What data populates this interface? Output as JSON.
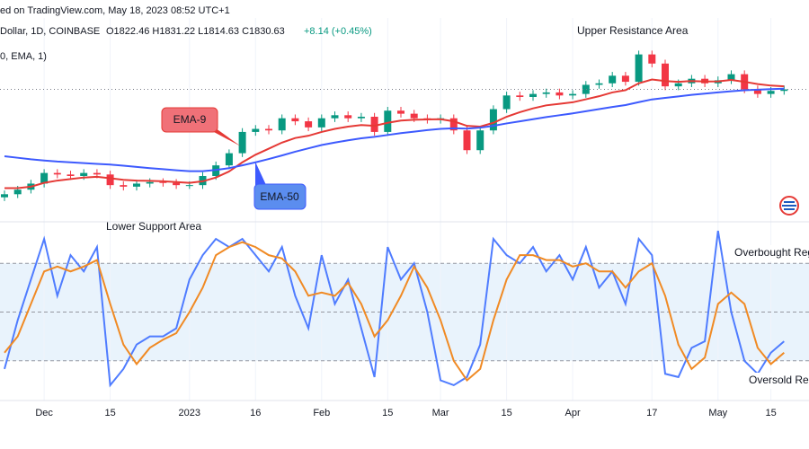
{
  "header": {
    "source": "ed on TradingView.com, May 18, 2023 08:52 UTC+1",
    "symbol": "Dollar, 1D, COINBASE",
    "ohlc": "O1822.46 H1831.22 L1814.63 C1830.63",
    "change": "+8.14 (+0.45%)",
    "indicator": "0, EMA, 1)"
  },
  "chart_data": [
    {
      "type": "candlestick",
      "up_color": "#089981",
      "down_color": "#f23645",
      "ylim": [
        1000,
        2300
      ],
      "annotations": [
        "Upper Resistance Area",
        "Lower Support Area"
      ],
      "open": [
        1120,
        1140,
        1170,
        1210,
        1280,
        1270,
        1260,
        1280,
        1270,
        1200,
        1190,
        1210,
        1220,
        1215,
        1200,
        1200,
        1260,
        1330,
        1410,
        1550,
        1570,
        1560,
        1640,
        1620,
        1580,
        1640,
        1660,
        1640,
        1650,
        1550,
        1690,
        1670,
        1640,
        1630,
        1640,
        1560,
        1430,
        1560,
        1700,
        1790,
        1780,
        1800,
        1810,
        1790,
        1800,
        1860,
        1870,
        1920,
        1880,
        2060,
        2000,
        1850,
        1870,
        1900,
        1870,
        1890,
        1930,
        1830,
        1800,
        1820
      ],
      "high": [
        1165,
        1195,
        1235,
        1305,
        1305,
        1295,
        1305,
        1305,
        1295,
        1225,
        1235,
        1245,
        1245,
        1240,
        1225,
        1285,
        1355,
        1435,
        1575,
        1595,
        1595,
        1665,
        1665,
        1645,
        1665,
        1685,
        1685,
        1675,
        1675,
        1715,
        1715,
        1695,
        1665,
        1665,
        1665,
        1585,
        1585,
        1725,
        1815,
        1815,
        1825,
        1835,
        1835,
        1825,
        1885,
        1895,
        1945,
        1945,
        2085,
        2085,
        2025,
        1895,
        1925,
        1925,
        1915,
        1955,
        1955,
        1855,
        1845,
        1855
      ],
      "low": [
        1095,
        1115,
        1145,
        1185,
        1245,
        1235,
        1235,
        1245,
        1175,
        1165,
        1165,
        1185,
        1190,
        1175,
        1175,
        1175,
        1235,
        1305,
        1385,
        1525,
        1535,
        1535,
        1595,
        1555,
        1555,
        1615,
        1615,
        1615,
        1525,
        1525,
        1645,
        1615,
        1605,
        1605,
        1535,
        1405,
        1405,
        1535,
        1675,
        1755,
        1755,
        1775,
        1765,
        1765,
        1775,
        1835,
        1845,
        1855,
        1855,
        1975,
        1825,
        1825,
        1845,
        1845,
        1845,
        1865,
        1805,
        1775,
        1775,
        1795
      ],
      "close": [
        1140,
        1170,
        1210,
        1280,
        1270,
        1260,
        1280,
        1270,
        1200,
        1190,
        1210,
        1220,
        1215,
        1200,
        1200,
        1260,
        1330,
        1410,
        1550,
        1570,
        1560,
        1640,
        1620,
        1580,
        1640,
        1660,
        1640,
        1650,
        1550,
        1690,
        1670,
        1640,
        1630,
        1640,
        1560,
        1430,
        1560,
        1700,
        1790,
        1780,
        1800,
        1810,
        1790,
        1800,
        1860,
        1870,
        1920,
        1880,
        2060,
        2000,
        1850,
        1870,
        1900,
        1870,
        1890,
        1930,
        1830,
        1800,
        1820,
        1830
      ],
      "series": [
        {
          "name": "EMA-9",
          "color": "#e53935",
          "values": [
            1180,
            1180,
            1190,
            1215,
            1230,
            1240,
            1250,
            1255,
            1245,
            1235,
            1230,
            1228,
            1225,
            1220,
            1215,
            1225,
            1250,
            1290,
            1350,
            1400,
            1440,
            1480,
            1510,
            1525,
            1550,
            1570,
            1585,
            1595,
            1590,
            1610,
            1625,
            1630,
            1632,
            1634,
            1620,
            1590,
            1585,
            1610,
            1650,
            1680,
            1705,
            1725,
            1735,
            1745,
            1765,
            1785,
            1810,
            1825,
            1870,
            1895,
            1885,
            1880,
            1885,
            1882,
            1883,
            1892,
            1880,
            1865,
            1855,
            1850
          ]
        },
        {
          "name": "EMA-50",
          "color": "#3d5afe",
          "values": [
            1390,
            1380,
            1370,
            1362,
            1355,
            1350,
            1345,
            1340,
            1335,
            1328,
            1320,
            1312,
            1305,
            1298,
            1292,
            1292,
            1300,
            1312,
            1330,
            1350,
            1372,
            1395,
            1420,
            1442,
            1464,
            1480,
            1495,
            1508,
            1518,
            1530,
            1542,
            1552,
            1562,
            1570,
            1574,
            1572,
            1578,
            1590,
            1606,
            1620,
            1634,
            1648,
            1660,
            1672,
            1686,
            1700,
            1714,
            1727,
            1746,
            1764,
            1774,
            1784,
            1794,
            1802,
            1810,
            1818,
            1824,
            1828,
            1832,
            1835
          ]
        }
      ]
    },
    {
      "type": "line",
      "ylim": [
        0,
        100
      ],
      "levels": [
        80,
        50,
        20
      ],
      "annotations": [
        "Overbought Reg",
        "Oversold Reg"
      ],
      "categories": [
        null,
        null,
        null,
        "Dec",
        null,
        null,
        null,
        null,
        "15",
        null,
        null,
        null,
        null,
        null,
        "2023",
        null,
        null,
        null,
        null,
        "16",
        null,
        null,
        null,
        null,
        "Feb",
        null,
        null,
        null,
        null,
        "15",
        null,
        null,
        null,
        "Mar",
        null,
        null,
        null,
        null,
        "15",
        null,
        null,
        null,
        null,
        "Apr",
        null,
        null,
        null,
        null,
        null,
        "17",
        null,
        null,
        null,
        null,
        "May",
        null,
        null,
        null,
        "15",
        null
      ],
      "series": [
        {
          "color": "#4f7cff",
          "values": [
            15,
            45,
            70,
            95,
            60,
            85,
            75,
            90,
            5,
            15,
            30,
            35,
            35,
            40,
            70,
            85,
            95,
            90,
            95,
            85,
            75,
            90,
            60,
            40,
            85,
            55,
            70,
            40,
            10,
            90,
            70,
            80,
            50,
            8,
            5,
            10,
            30,
            95,
            85,
            80,
            90,
            75,
            85,
            70,
            90,
            65,
            75,
            55,
            95,
            85,
            12,
            10,
            28,
            32,
            100,
            50,
            20,
            12,
            25,
            32
          ]
        },
        {
          "color": "#f08a24",
          "values": [
            25,
            35,
            55,
            75,
            78,
            75,
            78,
            82,
            55,
            30,
            18,
            28,
            33,
            37,
            50,
            65,
            85,
            90,
            93,
            90,
            85,
            83,
            75,
            60,
            62,
            60,
            68,
            55,
            35,
            45,
            60,
            78,
            65,
            45,
            20,
            8,
            15,
            45,
            70,
            85,
            85,
            82,
            82,
            78,
            80,
            75,
            75,
            65,
            75,
            80,
            60,
            30,
            15,
            22,
            55,
            62,
            55,
            28,
            18,
            25
          ]
        }
      ]
    }
  ]
}
